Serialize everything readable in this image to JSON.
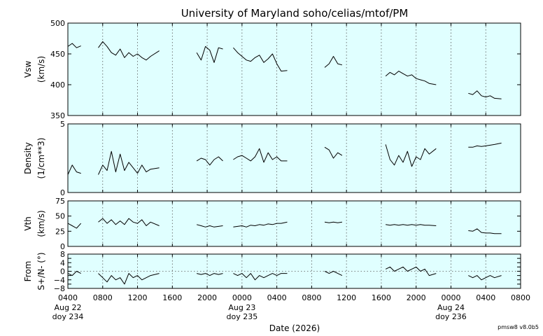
{
  "figure": {
    "title": "University of Maryland  soho/celias/mtof/PM",
    "xlabel": "Date (2026)",
    "footer": "pmsw8 v8.0b5",
    "panel_bg": "#e0ffff",
    "line_color": "#000000",
    "grid_color": "#555555"
  },
  "x_axis": {
    "ticks": [
      {
        "t": 0,
        "label": "0400",
        "sub1": "Aug 22",
        "sub2": "doy 234"
      },
      {
        "t": 4,
        "label": "0800"
      },
      {
        "t": 8,
        "label": "1200"
      },
      {
        "t": 12,
        "label": "1600"
      },
      {
        "t": 16,
        "label": "2000"
      },
      {
        "t": 20,
        "label": "0000",
        "sub1": "Aug 23",
        "sub2": "doy 235"
      },
      {
        "t": 24,
        "label": "0400"
      },
      {
        "t": 28,
        "label": "0800"
      },
      {
        "t": 32,
        "label": "1200"
      },
      {
        "t": 36,
        "label": "1600"
      },
      {
        "t": 40,
        "label": "2000"
      },
      {
        "t": 44,
        "label": "0000",
        "sub1": "Aug 24",
        "sub2": "doy 236"
      },
      {
        "t": 48,
        "label": "0400"
      },
      {
        "t": 52,
        "label": "0800"
      }
    ],
    "range_hours": [
      0,
      52
    ]
  },
  "chart_data": [
    {
      "type": "line",
      "ylabel": [
        "Vsw",
        "(km/s)"
      ],
      "ylim": [
        350,
        500
      ],
      "yticks": [
        350,
        400,
        450,
        500
      ],
      "grid": "vertical dotted",
      "series": [
        {
          "x": [
            0,
            0.5,
            1,
            1.5
          ],
          "y": [
            462,
            467,
            460,
            463
          ]
        },
        {
          "x": [
            3.5,
            4,
            4.5,
            5,
            5.5,
            6,
            6.5,
            7,
            7.5,
            8,
            8.5,
            9,
            9.5,
            10.5
          ],
          "y": [
            460,
            470,
            462,
            452,
            448,
            458,
            444,
            452,
            446,
            450,
            444,
            440,
            446,
            455
          ]
        },
        {
          "x": [
            14.8,
            15.3,
            15.8,
            16.3,
            16.8,
            17.3,
            17.8
          ],
          "y": [
            452,
            440,
            462,
            456,
            436,
            460,
            458
          ]
        },
        {
          "x": [
            19,
            19.5,
            20,
            20.5,
            21,
            21.5,
            22,
            22.5,
            23,
            23.5,
            24,
            24.5,
            25.2
          ],
          "y": [
            460,
            452,
            446,
            440,
            438,
            444,
            448,
            436,
            442,
            450,
            434,
            422,
            423
          ]
        },
        {
          "x": [
            29.5,
            30,
            30.5,
            31,
            31.5
          ],
          "y": [
            428,
            434,
            446,
            434,
            432
          ]
        },
        {
          "x": [
            36.5,
            37,
            37.5,
            38,
            38.5,
            39,
            39.5,
            40,
            40.5,
            41,
            41.5,
            42.3
          ],
          "y": [
            414,
            420,
            416,
            422,
            418,
            414,
            416,
            410,
            408,
            406,
            402,
            400
          ]
        },
        {
          "x": [
            46,
            46.5,
            47,
            47.5,
            48,
            48.5,
            49,
            49.8
          ],
          "y": [
            386,
            384,
            390,
            382,
            380,
            382,
            378,
            377
          ]
        }
      ]
    },
    {
      "type": "line",
      "ylabel": [
        "Density",
        "(1/cm**3)"
      ],
      "ylim": [
        0,
        5
      ],
      "yticks": [
        0,
        5
      ],
      "grid": "vertical dotted",
      "series": [
        {
          "x": [
            0,
            0.5,
            1,
            1.5
          ],
          "y": [
            1.3,
            2.0,
            1.5,
            1.4
          ]
        },
        {
          "x": [
            3.5,
            4,
            4.5,
            5,
            5.5,
            6,
            6.5,
            7,
            7.5,
            8,
            8.5,
            9,
            9.5,
            10.5
          ],
          "y": [
            1.3,
            2.0,
            1.6,
            3.0,
            1.5,
            2.8,
            1.6,
            2.2,
            1.8,
            1.4,
            2.0,
            1.5,
            1.7,
            1.8
          ]
        },
        {
          "x": [
            14.8,
            15.3,
            15.8,
            16.3,
            16.8,
            17.3,
            17.8
          ],
          "y": [
            2.3,
            2.5,
            2.4,
            2.0,
            2.4,
            2.6,
            2.3
          ]
        },
        {
          "x": [
            19,
            19.5,
            20,
            20.5,
            21,
            21.5,
            22,
            22.5,
            23,
            23.5,
            24,
            24.5,
            25.2
          ],
          "y": [
            2.4,
            2.6,
            2.7,
            2.5,
            2.3,
            2.6,
            3.2,
            2.2,
            2.9,
            2.4,
            2.6,
            2.3,
            2.3
          ]
        },
        {
          "x": [
            29.5,
            30,
            30.5,
            31,
            31.5
          ],
          "y": [
            3.3,
            3.1,
            2.5,
            2.9,
            2.7
          ]
        },
        {
          "x": [
            36.5,
            37,
            37.5,
            38,
            38.5,
            39,
            39.5,
            40,
            40.5,
            41,
            41.5,
            42.3
          ],
          "y": [
            3.5,
            2.4,
            2.0,
            2.7,
            2.2,
            3.0,
            1.9,
            2.6,
            2.4,
            3.2,
            2.8,
            3.2
          ]
        },
        {
          "x": [
            46,
            46.5,
            47,
            47.5,
            48,
            48.5,
            49,
            49.8
          ],
          "y": [
            3.3,
            3.3,
            3.4,
            3.35,
            3.4,
            3.45,
            3.5,
            3.6
          ]
        }
      ]
    },
    {
      "type": "line",
      "ylabel": [
        "Vth",
        "(km/s)"
      ],
      "ylim": [
        0,
        75
      ],
      "yticks": [
        0,
        25,
        50,
        75
      ],
      "grid": "vertical dotted",
      "series": [
        {
          "x": [
            0,
            0.5,
            1,
            1.5
          ],
          "y": [
            38,
            34,
            30,
            38
          ]
        },
        {
          "x": [
            3.5,
            4,
            4.5,
            5,
            5.5,
            6,
            6.5,
            7,
            7.5,
            8,
            8.5,
            9,
            9.5,
            10.5
          ],
          "y": [
            40,
            46,
            38,
            44,
            36,
            42,
            36,
            46,
            40,
            38,
            44,
            34,
            40,
            34
          ]
        },
        {
          "x": [
            14.8,
            15.3,
            15.8,
            16.3,
            16.8,
            17.3,
            17.8
          ],
          "y": [
            36,
            34,
            32,
            34,
            32,
            33,
            34
          ]
        },
        {
          "x": [
            19,
            19.5,
            20,
            20.5,
            21,
            21.5,
            22,
            22.5,
            23,
            23.5,
            24,
            24.5,
            25.2
          ],
          "y": [
            32,
            33,
            34,
            32,
            35,
            34,
            36,
            35,
            37,
            36,
            38,
            38,
            40
          ]
        },
        {
          "x": [
            29.5,
            30,
            30.5,
            31,
            31.5
          ],
          "y": [
            40,
            39,
            40,
            39,
            40
          ]
        },
        {
          "x": [
            36.5,
            37,
            37.5,
            38,
            38.5,
            39,
            39.5,
            40,
            40.5,
            41,
            41.5,
            42.3
          ],
          "y": [
            36,
            35,
            36,
            35,
            36,
            35,
            36,
            35,
            36,
            35,
            35,
            34
          ]
        },
        {
          "x": [
            46,
            46.5,
            47,
            47.5,
            48,
            48.5,
            49,
            49.8
          ],
          "y": [
            26,
            25,
            29,
            23,
            22,
            22,
            21,
            21
          ]
        }
      ]
    },
    {
      "type": "line",
      "ylabel": [
        "From",
        "S+/N- (°)"
      ],
      "ylim": [
        -8,
        8
      ],
      "yticks": [
        -8,
        -6,
        -4,
        -2,
        0,
        2,
        4,
        6,
        8
      ],
      "ytick_labels": [
        "−8",
        "",
        "−4",
        "",
        "0",
        "",
        "4",
        "",
        "8"
      ],
      "grid": "vertical dotted, dashed zero line",
      "series": [
        {
          "x": [
            0,
            0.5,
            1,
            1.5
          ],
          "y": [
            -1,
            -2,
            0,
            -1
          ]
        },
        {
          "x": [
            3.5,
            4,
            4.5,
            5,
            5.5,
            6,
            6.5,
            7,
            7.5,
            8,
            8.5,
            9,
            9.5,
            10.5
          ],
          "y": [
            -1,
            -3,
            -5,
            -2,
            -4,
            -3,
            -6,
            -1,
            -3,
            -2,
            -4,
            -3,
            -2,
            -1
          ]
        },
        {
          "x": [
            14.8,
            15.3,
            15.8,
            16.3,
            16.8,
            17.3,
            17.8
          ],
          "y": [
            -1,
            -1.5,
            -1,
            -2,
            -1,
            -1.5,
            -1
          ]
        },
        {
          "x": [
            19,
            19.5,
            20,
            20.5,
            21,
            21.5,
            22,
            22.5,
            23,
            23.5,
            24,
            24.5,
            25.2
          ],
          "y": [
            -1,
            -2,
            -1,
            -3,
            -1,
            -4,
            -2,
            -3,
            -2,
            -1,
            -2,
            -1,
            -1
          ]
        },
        {
          "x": [
            29.5,
            30,
            30.5,
            31,
            31.5
          ],
          "y": [
            0,
            -1,
            0,
            -1,
            -2
          ]
        },
        {
          "x": [
            36.5,
            37,
            37.5,
            38,
            38.5,
            39,
            39.5,
            40,
            40.5,
            41,
            41.5,
            42.3
          ],
          "y": [
            1,
            2,
            0,
            1,
            2,
            0,
            1,
            2,
            0,
            1,
            -2,
            -1
          ]
        },
        {
          "x": [
            46,
            46.5,
            47,
            47.5,
            48,
            48.5,
            49,
            49.8
          ],
          "y": [
            -2,
            -3,
            -2,
            -4,
            -3,
            -2,
            -3,
            -2
          ]
        }
      ]
    }
  ]
}
